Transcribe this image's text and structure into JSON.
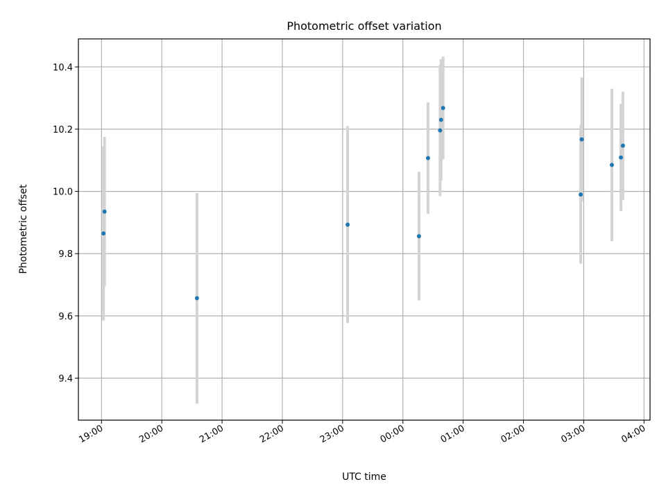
{
  "chart_data": {
    "type": "scatter",
    "title": "Photometric offset variation",
    "xlabel": "UTC time",
    "ylabel": "Photometric offset",
    "x_axis": {
      "kind": "time",
      "range": [
        "18:37",
        "04:06"
      ],
      "ticks": [
        "19:00",
        "20:00",
        "21:00",
        "22:00",
        "23:00",
        "00:00",
        "01:00",
        "02:00",
        "03:00",
        "04:00"
      ]
    },
    "y_axis": {
      "range": [
        9.265,
        10.49
      ],
      "ticks": [
        "9.4",
        "9.6",
        "9.8",
        "10.0",
        "10.2",
        "10.4"
      ]
    },
    "grid": true,
    "colors": {
      "point": "#1f77b4",
      "errorbar": "#d3d3d3"
    },
    "points": [
      {
        "time": "19:02",
        "y": 9.865,
        "ylow": 9.585,
        "yhigh": 10.145
      },
      {
        "time": "19:03",
        "y": 9.935,
        "ylow": 9.695,
        "yhigh": 10.175
      },
      {
        "time": "20:35",
        "y": 9.657,
        "ylow": 9.318,
        "yhigh": 9.995
      },
      {
        "time": "23:05",
        "y": 9.893,
        "ylow": 9.577,
        "yhigh": 10.21
      },
      {
        "time": "00:16",
        "y": 9.856,
        "ylow": 9.65,
        "yhigh": 10.063
      },
      {
        "time": "00:25",
        "y": 10.107,
        "ylow": 9.928,
        "yhigh": 10.286
      },
      {
        "time": "00:37",
        "y": 10.196,
        "ylow": 9.985,
        "yhigh": 10.407
      },
      {
        "time": "00:38",
        "y": 10.23,
        "ylow": 10.035,
        "yhigh": 10.425
      },
      {
        "time": "00:40",
        "y": 10.268,
        "ylow": 10.103,
        "yhigh": 10.433
      },
      {
        "time": "02:57",
        "y": 9.99,
        "ylow": 9.768,
        "yhigh": 10.212
      },
      {
        "time": "02:58",
        "y": 10.167,
        "ylow": 9.968,
        "yhigh": 10.366
      },
      {
        "time": "03:28",
        "y": 10.085,
        "ylow": 9.84,
        "yhigh": 10.33
      },
      {
        "time": "03:37",
        "y": 10.109,
        "ylow": 9.937,
        "yhigh": 10.281
      },
      {
        "time": "03:39",
        "y": 10.147,
        "ylow": 9.973,
        "yhigh": 10.321
      }
    ]
  }
}
